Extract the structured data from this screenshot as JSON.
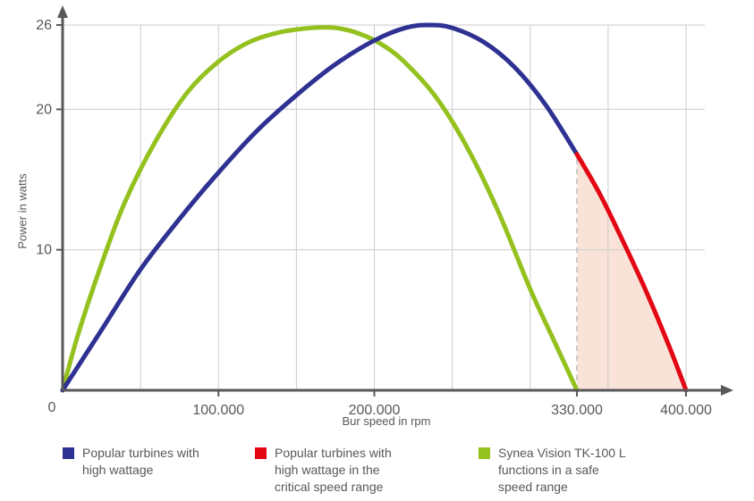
{
  "chart_data": {
    "type": "line",
    "title": "",
    "xlabel": "Bur speed in rpm",
    "ylabel": "Power in watts",
    "x_units_note": "x values in thousands of rpm",
    "xlim": [
      0,
      400
    ],
    "ylim": [
      0,
      26
    ],
    "x_ticks": [
      {
        "value": 0,
        "label": "0"
      },
      {
        "value": 100,
        "label": "100.000"
      },
      {
        "value": 200,
        "label": "200.000"
      },
      {
        "value": 330,
        "label": "330.000"
      },
      {
        "value": 400,
        "label": "400.000"
      }
    ],
    "y_ticks": [
      {
        "value": 10,
        "label": "10"
      },
      {
        "value": 20,
        "label": "20"
      },
      {
        "value": 26,
        "label": "26"
      }
    ],
    "grid": {
      "x_step": 50,
      "x_max": 400,
      "y_lines": [
        10,
        20,
        26
      ],
      "color": "#cccccc"
    },
    "critical_speed_marker": {
      "x": 330,
      "color": "#c9c9c9",
      "style": "dashed"
    },
    "series": [
      {
        "name": "Popular turbines with high wattage",
        "color": "#2e3192",
        "points": [
          [
            0,
            0
          ],
          [
            25,
            4.3
          ],
          [
            50,
            8.6
          ],
          [
            75,
            12.2
          ],
          [
            100,
            15.5
          ],
          [
            125,
            18.5
          ],
          [
            150,
            21.0
          ],
          [
            175,
            23.2
          ],
          [
            200,
            24.9
          ],
          [
            220,
            25.8
          ],
          [
            235,
            26.0
          ],
          [
            250,
            25.8
          ],
          [
            270,
            24.8
          ],
          [
            290,
            23.0
          ],
          [
            310,
            20.3
          ],
          [
            330,
            16.8
          ]
        ]
      },
      {
        "name": "Popular turbines with high wattage in the critical speed range",
        "color": "#e30613",
        "fill_under": true,
        "fill_color": "#f9e3d8",
        "points": [
          [
            330,
            16.8
          ],
          [
            345,
            13.9
          ],
          [
            360,
            10.5
          ],
          [
            375,
            6.9
          ],
          [
            390,
            2.9
          ],
          [
            400,
            0
          ]
        ]
      },
      {
        "name": "Synea Vision TK-100 L functions in a safe speed range",
        "color": "#95c11f",
        "points": [
          [
            0,
            0
          ],
          [
            10,
            4.0
          ],
          [
            25,
            9.0
          ],
          [
            40,
            13.4
          ],
          [
            60,
            17.8
          ],
          [
            80,
            21.2
          ],
          [
            100,
            23.4
          ],
          [
            120,
            24.8
          ],
          [
            140,
            25.5
          ],
          [
            160,
            25.8
          ],
          [
            175,
            25.8
          ],
          [
            190,
            25.4
          ],
          [
            205,
            24.6
          ],
          [
            220,
            23.3
          ],
          [
            240,
            20.8
          ],
          [
            260,
            17.2
          ],
          [
            280,
            12.6
          ],
          [
            300,
            7.2
          ],
          [
            315,
            3.6
          ],
          [
            330,
            0
          ]
        ]
      }
    ],
    "axis_color": "#59595b",
    "text_color": "#58585a"
  },
  "legend": [
    {
      "color": "#2e3192",
      "lines": [
        "Popular turbines with",
        "high wattage"
      ]
    },
    {
      "color": "#e30613",
      "lines": [
        "Popular turbines with",
        "high wattage in the",
        "critical speed range"
      ]
    },
    {
      "color": "#95c11f",
      "lines": [
        "Synea Vision TK-100 L",
        "functions in a safe",
        "speed range"
      ]
    }
  ]
}
